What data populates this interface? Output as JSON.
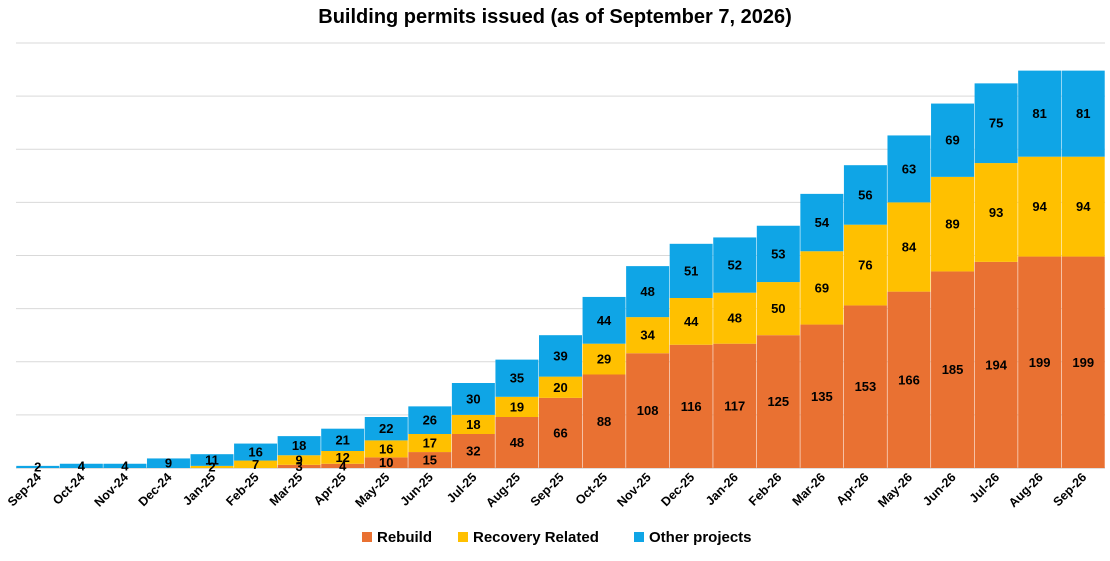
{
  "chart_data": {
    "type": "bar",
    "stacked": true,
    "title": "Building permits issued (as of September 7, 2026)",
    "xlabel": "",
    "ylabel": "",
    "ylim": [
      0,
      400
    ],
    "grid": true,
    "legend_position": "bottom",
    "categories": [
      "Sep-24",
      "Oct-24",
      "Nov-24",
      "Dec-24",
      "Jan-25",
      "Feb-25",
      "Mar-25",
      "Apr-25",
      "May-25",
      "Jun-25",
      "Jul-25",
      "Aug-25",
      "Sep-25",
      "Oct-25",
      "Nov-25",
      "Dec-25",
      "Jan-26",
      "Feb-26",
      "Mar-26",
      "Apr-26",
      "May-26",
      "Jun-26",
      "Jul-26",
      "Aug-26",
      "Sep-26"
    ],
    "series": [
      {
        "name": "Rebuild",
        "color": "#E97132",
        "values": [
          0,
          0,
          0,
          0,
          0,
          0,
          3,
          4,
          10,
          15,
          32,
          48,
          66,
          88,
          108,
          116,
          117,
          125,
          135,
          153,
          166,
          185,
          194,
          199,
          199
        ]
      },
      {
        "name": "Recovery Related",
        "color": "#FFC000",
        "values": [
          0,
          0,
          0,
          0,
          2,
          7,
          9,
          12,
          16,
          17,
          18,
          19,
          20,
          29,
          34,
          44,
          48,
          50,
          69,
          76,
          84,
          89,
          93,
          94,
          94
        ]
      },
      {
        "name": "Other projects",
        "color": "#0FA5E6",
        "values": [
          2,
          4,
          4,
          9,
          11,
          16,
          18,
          21,
          22,
          26,
          30,
          35,
          39,
          44,
          48,
          51,
          52,
          53,
          54,
          56,
          63,
          69,
          75,
          81,
          81
        ]
      }
    ]
  }
}
